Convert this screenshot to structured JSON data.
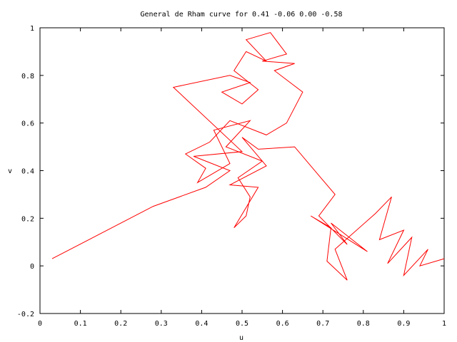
{
  "chart_data": {
    "type": "line",
    "title": "General de Rham curve for 0.41 -0.06 0.00 -0.58",
    "xlabel": "u",
    "ylabel": "v",
    "xlim": [
      0,
      1
    ],
    "ylim": [
      -0.2,
      1
    ],
    "xticks": [
      "0",
      "0.1",
      "0.2",
      "0.3",
      "0.4",
      "0.5",
      "0.6",
      "0.7",
      "0.8",
      "0.9",
      "1"
    ],
    "yticks": [
      "-0.2",
      "0",
      "0.2",
      "0.4",
      "0.6",
      "0.8",
      "1"
    ],
    "grid": false,
    "legend": "none",
    "series": [
      {
        "color": "#ff0000",
        "x": [
          0.03,
          0.28,
          0.41,
          0.47,
          0.38,
          0.5,
          0.33,
          0.47,
          0.52,
          0.45,
          0.5,
          0.54,
          0.48,
          0.51,
          0.56,
          0.51,
          0.57,
          0.61,
          0.55,
          0.63,
          0.58,
          0.65,
          0.61,
          0.56,
          0.47,
          0.42,
          0.36,
          0.41,
          0.39,
          0.47,
          0.43,
          0.52,
          0.46,
          0.55,
          0.49,
          0.52,
          0.51,
          0.48,
          0.54,
          0.47,
          0.56,
          0.5,
          0.54,
          0.63,
          0.7,
          0.73,
          0.69,
          0.76,
          0.72,
          0.81,
          0.67,
          0.72,
          0.71,
          0.76,
          0.73,
          0.83,
          0.87,
          0.84,
          0.9,
          0.86,
          0.92,
          0.9,
          0.96,
          0.94,
          1.0
        ],
        "y": [
          0.03,
          0.25,
          0.33,
          0.4,
          0.46,
          0.48,
          0.75,
          0.8,
          0.77,
          0.73,
          0.68,
          0.74,
          0.82,
          0.9,
          0.86,
          0.95,
          0.98,
          0.89,
          0.86,
          0.85,
          0.82,
          0.73,
          0.6,
          0.55,
          0.61,
          0.52,
          0.47,
          0.41,
          0.35,
          0.43,
          0.57,
          0.61,
          0.5,
          0.44,
          0.37,
          0.29,
          0.21,
          0.16,
          0.33,
          0.34,
          0.42,
          0.54,
          0.49,
          0.5,
          0.36,
          0.3,
          0.21,
          0.09,
          0.18,
          0.06,
          0.21,
          0.16,
          0.02,
          -0.06,
          0.07,
          0.22,
          0.29,
          0.11,
          0.15,
          0.01,
          0.12,
          -0.04,
          0.07,
          0.0,
          0.03
        ]
      }
    ]
  }
}
